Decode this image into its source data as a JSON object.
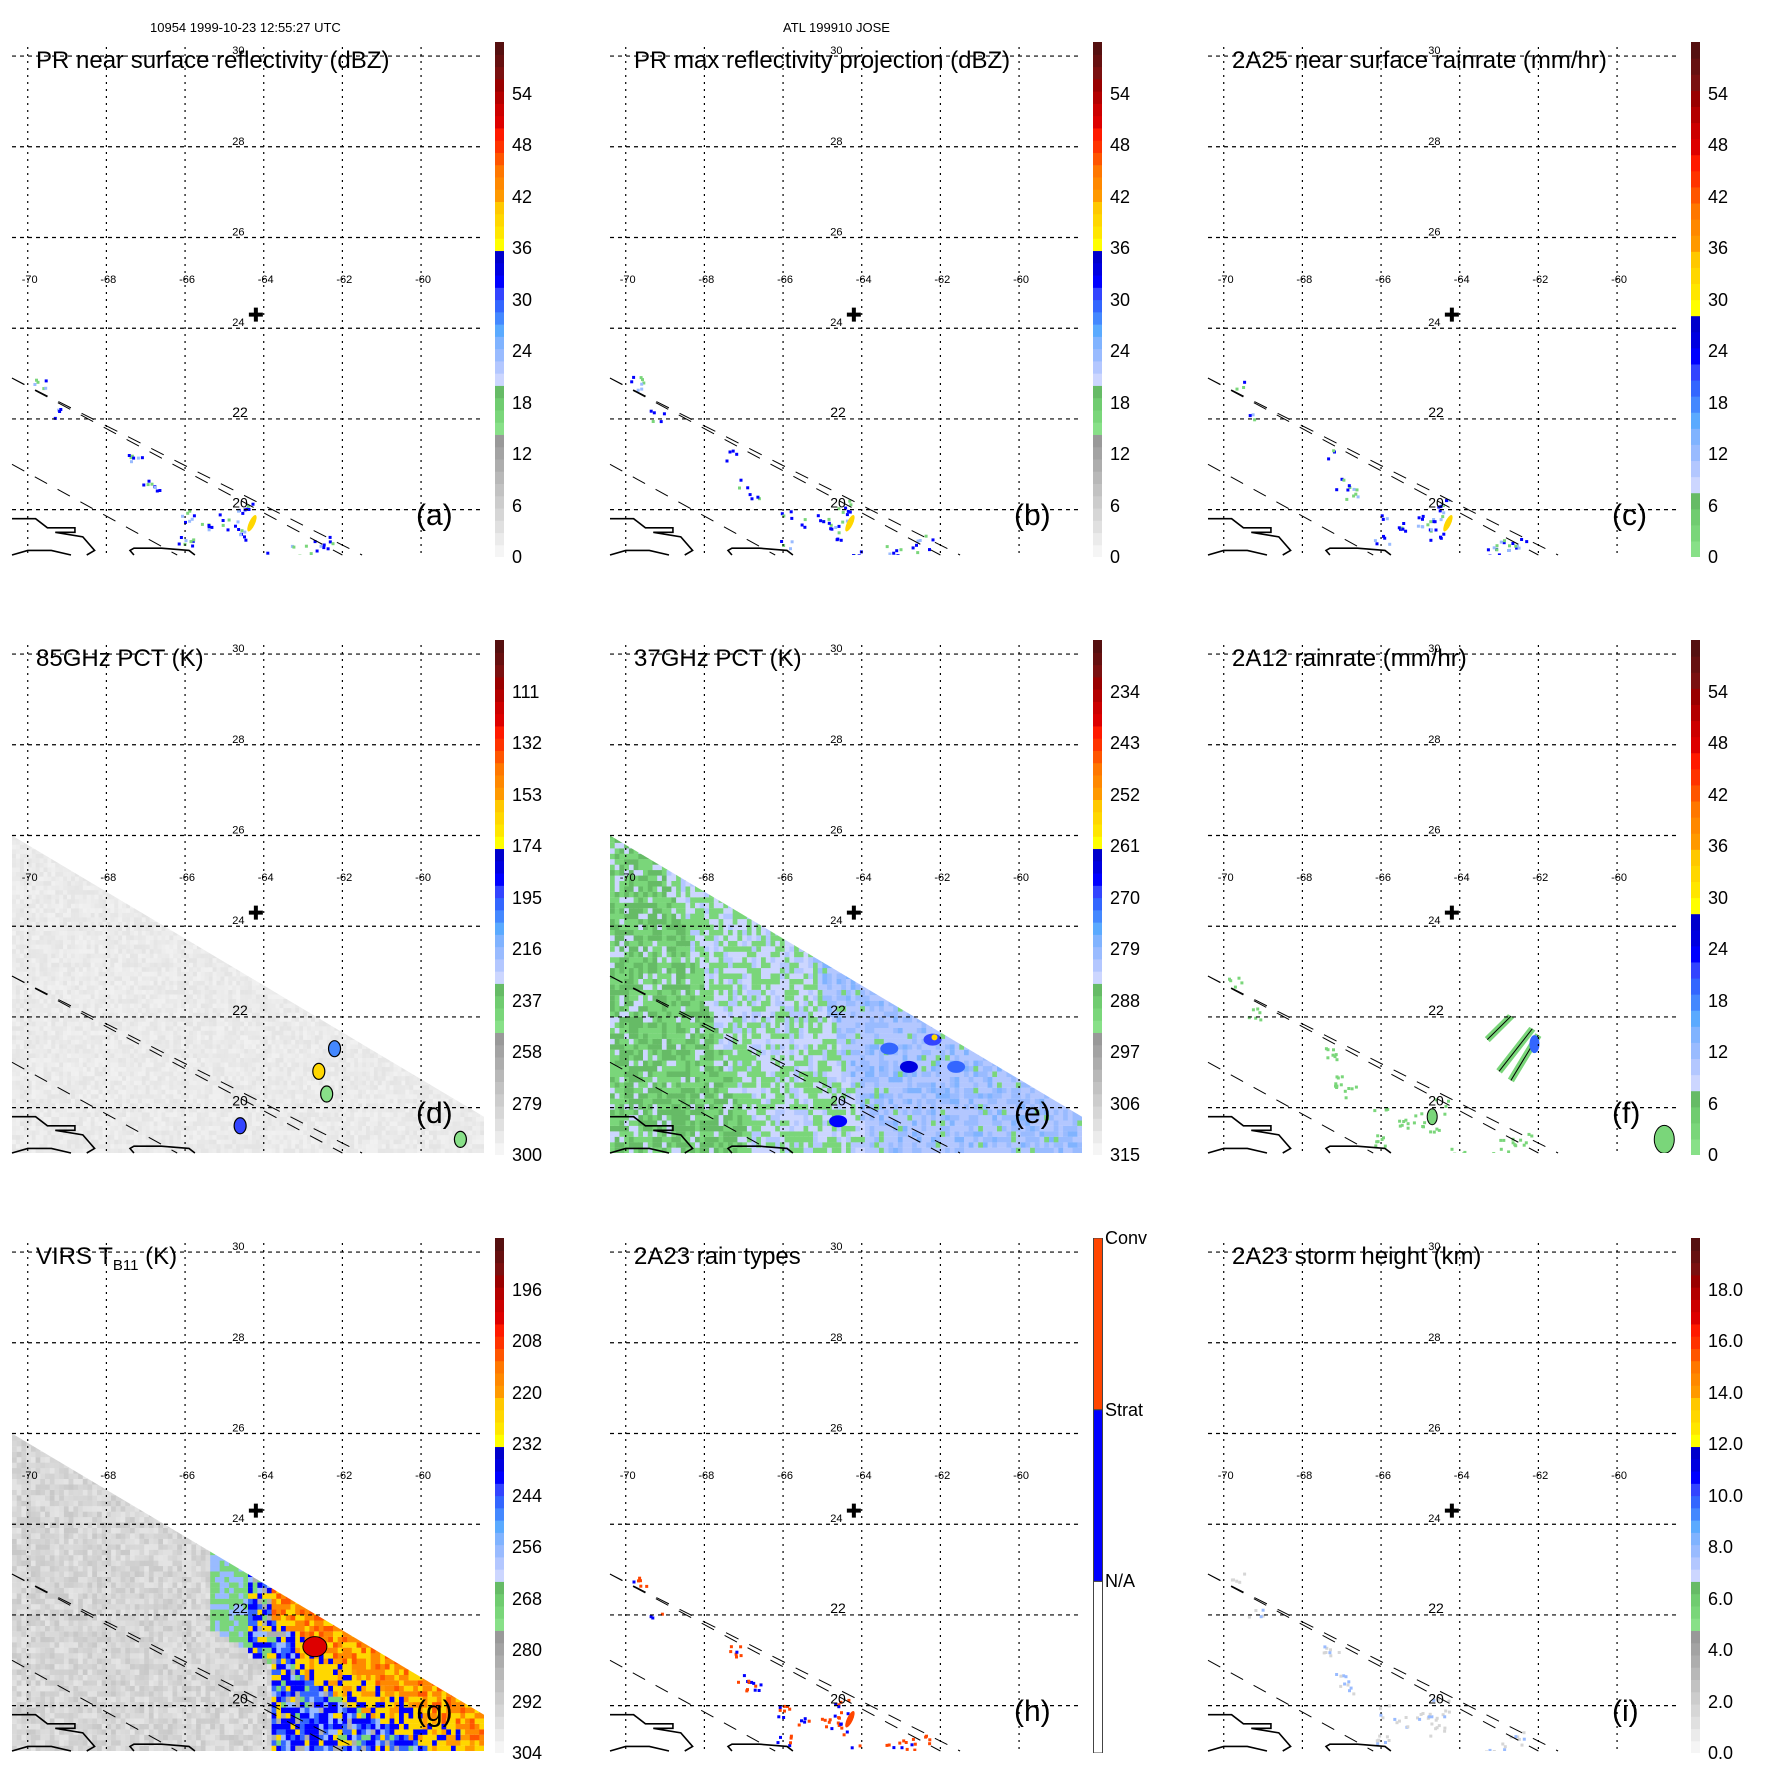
{
  "header": {
    "left": "10954 1999-10-23 12:55:27 UTC",
    "center": "ATL 199910 JOSE"
  },
  "colors": {
    "grid": "#000000",
    "coast": "#000000",
    "swath_edge": "#000000",
    "storm_center": "#000000",
    "conv": "#ff4500",
    "strat": "#0000ff",
    "na": "#ffffff"
  },
  "palette": [
    "#f5f5f5",
    "#ebebeb",
    "#e0e0e0",
    "#d6d6d6",
    "#cccccc",
    "#c2c2c2",
    "#b8b8b8",
    "#adadad",
    "#a3a3a3",
    "#999999",
    "#88e088",
    "#7ad67a",
    "#70cc70",
    "#66bb66",
    "#ccd6ff",
    "#b3c7ff",
    "#99bbff",
    "#80b3ff",
    "#5aaaff",
    "#4488ff",
    "#3366ff",
    "#3344ff",
    "#0000ff",
    "#0000e0",
    "#0000cc",
    "#ffff00",
    "#ffe600",
    "#ffd700",
    "#ffc800",
    "#ff9900",
    "#ff8800",
    "#ff7700",
    "#ff5500",
    "#ff3300",
    "#ff1a00",
    "#dd0000",
    "#cc0000",
    "#b30000",
    "#990000",
    "#7a1010",
    "#661010",
    "#551010"
  ],
  "chart_data": [
    {
      "id": "a",
      "type": "heatmap",
      "title": "PR near surface reflectivity (dBZ)",
      "panel_label": "(a)",
      "colorbar": {
        "ticks": [
          "0",
          "6",
          "12",
          "18",
          "24",
          "30",
          "36",
          "42",
          "48",
          "54"
        ],
        "range": [
          0,
          60
        ],
        "scheme": "dbz"
      },
      "field": "sparse",
      "lon_ticks": [
        "-70",
        "-68",
        "-66",
        "-64",
        "-62",
        "-60"
      ],
      "lat_ticks": [
        "30",
        "28",
        "26",
        "24",
        "22",
        "20"
      ],
      "storm_center": {
        "lon": -64.2,
        "lat": 24.3
      },
      "xlim": [
        -70.4,
        -58.4
      ],
      "ylim": [
        19.0,
        30.2
      ]
    },
    {
      "id": "b",
      "type": "heatmap",
      "title": "PR max reflectivity projection (dBZ)",
      "panel_label": "(b)",
      "colorbar": {
        "ticks": [
          "0",
          "6",
          "12",
          "18",
          "24",
          "30",
          "36",
          "42",
          "48",
          "54"
        ],
        "range": [
          0,
          60
        ],
        "scheme": "dbz"
      },
      "field": "sparse",
      "lon_ticks": [
        "-70",
        "-68",
        "-66",
        "-64",
        "-62",
        "-60"
      ],
      "lat_ticks": [
        "30",
        "28",
        "26",
        "24",
        "22",
        "20"
      ],
      "storm_center": {
        "lon": -64.2,
        "lat": 24.3
      },
      "xlim": [
        -70.4,
        -58.4
      ],
      "ylim": [
        19.0,
        30.2
      ]
    },
    {
      "id": "c",
      "type": "heatmap",
      "title": "2A25 near surface rainrate (mm/hr)",
      "panel_label": "(c)",
      "colorbar": {
        "ticks": [
          "0",
          "6",
          "12",
          "18",
          "24",
          "30",
          "36",
          "42",
          "48",
          "54"
        ],
        "range": [
          0,
          60
        ],
        "scheme": "rain"
      },
      "field": "sparse",
      "lon_ticks": [
        "-70",
        "-68",
        "-66",
        "-64",
        "-62",
        "-60"
      ],
      "lat_ticks": [
        "30",
        "28",
        "26",
        "24",
        "22",
        "20"
      ],
      "storm_center": {
        "lon": -64.2,
        "lat": 24.3
      },
      "xlim": [
        -70.4,
        -58.4
      ],
      "ylim": [
        19.0,
        30.2
      ]
    },
    {
      "id": "d",
      "type": "heatmap",
      "title": "85GHz PCT (K)",
      "panel_label": "(d)",
      "colorbar": {
        "ticks": [
          "300",
          "279",
          "258",
          "237",
          "216",
          "195",
          "174",
          "153",
          "132",
          "111"
        ],
        "range": [
          300,
          90
        ],
        "scheme": "dbz"
      },
      "field": "swath_gray",
      "lon_ticks": [
        "-70",
        "-68",
        "-66",
        "-64",
        "-62",
        "-60"
      ],
      "lat_ticks": [
        "30",
        "28",
        "26",
        "24",
        "22",
        "20"
      ],
      "storm_center": {
        "lon": -64.2,
        "lat": 24.3
      },
      "xlim": [
        -70.4,
        -58.4
      ],
      "ylim": [
        19.0,
        30.2
      ]
    },
    {
      "id": "e",
      "type": "heatmap",
      "title": "37GHz PCT (K)",
      "panel_label": "(e)",
      "colorbar": {
        "ticks": [
          "315",
          "306",
          "297",
          "288",
          "279",
          "270",
          "261",
          "252",
          "243",
          "234"
        ],
        "range": [
          315,
          225
        ],
        "scheme": "dbz"
      },
      "field": "swath_green_blue",
      "lon_ticks": [
        "-70",
        "-68",
        "-66",
        "-64",
        "-62",
        "-60"
      ],
      "lat_ticks": [
        "30",
        "28",
        "26",
        "24",
        "22",
        "20"
      ],
      "storm_center": {
        "lon": -64.2,
        "lat": 24.3
      },
      "xlim": [
        -70.4,
        -58.4
      ],
      "ylim": [
        19.0,
        30.2
      ]
    },
    {
      "id": "f",
      "type": "heatmap",
      "title": "2A12 rainrate (mm/hr)",
      "panel_label": "(f)",
      "colorbar": {
        "ticks": [
          "0",
          "6",
          "12",
          "18",
          "24",
          "30",
          "36",
          "42",
          "48",
          "54"
        ],
        "range": [
          0,
          60
        ],
        "scheme": "rain"
      },
      "field": "sparse_green",
      "lon_ticks": [
        "-70",
        "-68",
        "-66",
        "-64",
        "-62",
        "-60"
      ],
      "lat_ticks": [
        "30",
        "28",
        "26",
        "24",
        "22",
        "20"
      ],
      "storm_center": {
        "lon": -64.2,
        "lat": 24.3
      },
      "xlim": [
        -70.4,
        -58.4
      ],
      "ylim": [
        19.0,
        30.2
      ]
    },
    {
      "id": "g",
      "type": "heatmap",
      "title_main": "VIRS T",
      "title_sub": "B11",
      "title_tail": " (K)",
      "panel_label": "(g)",
      "colorbar": {
        "ticks": [
          "304",
          "292",
          "280",
          "268",
          "256",
          "244",
          "232",
          "220",
          "208",
          "196"
        ],
        "range": [
          304,
          184
        ],
        "scheme": "dbz"
      },
      "field": "swath_ir",
      "lon_ticks": [
        "-70",
        "-68",
        "-66",
        "-64",
        "-62",
        "-60"
      ],
      "lat_ticks": [
        "30",
        "28",
        "26",
        "24",
        "22",
        "20"
      ],
      "storm_center": {
        "lon": -64.2,
        "lat": 24.3
      },
      "xlim": [
        -70.4,
        -58.4
      ],
      "ylim": [
        19.0,
        30.2
      ]
    },
    {
      "id": "h",
      "type": "heatmap",
      "title": "2A23 rain types",
      "panel_label": "(h)",
      "colorbar": {
        "ticks": [
          "N/A",
          "Strat",
          "Conv"
        ],
        "scheme": "categorical"
      },
      "field": "sparse_types",
      "lon_ticks": [
        "-70",
        "-68",
        "-66",
        "-64",
        "-62",
        "-60"
      ],
      "lat_ticks": [
        "30",
        "28",
        "26",
        "24",
        "22",
        "20"
      ],
      "storm_center": {
        "lon": -64.2,
        "lat": 24.3
      },
      "xlim": [
        -70.4,
        -58.4
      ],
      "ylim": [
        19.0,
        30.2
      ]
    },
    {
      "id": "i",
      "type": "heatmap",
      "title": "2A23 storm height (km)",
      "panel_label": "(i)",
      "colorbar": {
        "ticks": [
          "0.0",
          "2.0",
          "4.0",
          "6.0",
          "8.0",
          "10.0",
          "12.0",
          "14.0",
          "16.0",
          "18.0"
        ],
        "range": [
          0,
          20
        ],
        "scheme": "dbz"
      },
      "field": "sparse_faint",
      "lon_ticks": [
        "-70",
        "-68",
        "-66",
        "-64",
        "-62",
        "-60"
      ],
      "lat_ticks": [
        "30",
        "28",
        "26",
        "24",
        "22",
        "20"
      ],
      "storm_center": {
        "lon": -64.2,
        "lat": 24.3
      },
      "xlim": [
        -70.4,
        -58.4
      ],
      "ylim": [
        19.0,
        30.2
      ]
    }
  ]
}
